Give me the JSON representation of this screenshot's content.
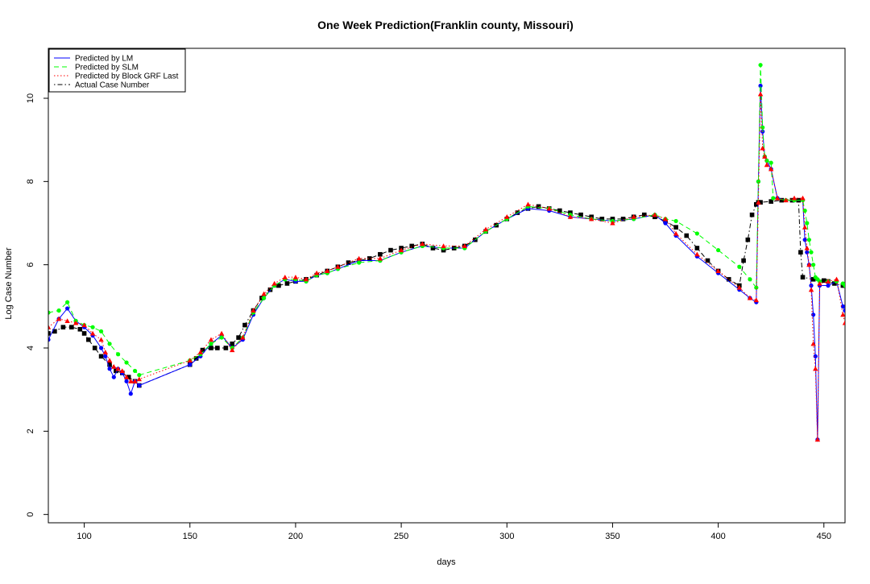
{
  "chart_data": {
    "type": "line",
    "title": "One Week Prediction(Franklin county, Missouri)",
    "xlabel": "days",
    "ylabel": "Log Case Number",
    "xlim": [
      83,
      460
    ],
    "ylim": [
      -0.2,
      11.2
    ],
    "xticks": [
      100,
      150,
      200,
      250,
      300,
      350,
      400,
      450
    ],
    "yticks": [
      0,
      2,
      4,
      6,
      8,
      10
    ],
    "legend_position": "top-left",
    "grid": false,
    "series": [
      {
        "name": "Predicted by LM",
        "color": "#0000ff",
        "line_style": "solid",
        "marker": "circle",
        "x": [
          83,
          88,
          92,
          96,
          100,
          104,
          108,
          110,
          112,
          114,
          116,
          118,
          120,
          122,
          124,
          126,
          150,
          155,
          160,
          165,
          170,
          175,
          180,
          185,
          190,
          195,
          200,
          205,
          210,
          215,
          220,
          230,
          240,
          250,
          260,
          270,
          280,
          290,
          300,
          310,
          320,
          330,
          340,
          350,
          360,
          370,
          375,
          380,
          390,
          400,
          410,
          415,
          418,
          419,
          420,
          421,
          422,
          423,
          425,
          428,
          432,
          436,
          440,
          441,
          442,
          443,
          444,
          445,
          446,
          447,
          448,
          452,
          456,
          459,
          460
        ],
        "y": [
          4.2,
          4.7,
          4.95,
          4.65,
          4.5,
          4.3,
          4.0,
          3.8,
          3.5,
          3.3,
          3.5,
          3.4,
          3.2,
          2.9,
          3.2,
          3.1,
          3.6,
          3.8,
          4.1,
          4.3,
          4.0,
          4.2,
          4.8,
          5.2,
          5.5,
          5.65,
          5.6,
          5.6,
          5.75,
          5.8,
          5.9,
          6.1,
          6.1,
          6.3,
          6.45,
          6.4,
          6.4,
          6.8,
          7.1,
          7.35,
          7.3,
          7.15,
          7.1,
          7.05,
          7.1,
          7.2,
          7.0,
          6.7,
          6.2,
          5.8,
          5.4,
          5.2,
          5.1,
          8.0,
          10.3,
          9.2,
          8.6,
          8.5,
          8.3,
          7.6,
          7.55,
          7.55,
          7.55,
          6.6,
          6.3,
          6.0,
          5.5,
          4.8,
          3.8,
          1.8,
          5.5,
          5.5,
          5.6,
          5.0,
          4.9
        ]
      },
      {
        "name": "Predicted by SLM",
        "color": "#00ff00",
        "line_style": "dashed",
        "marker": "circle",
        "x": [
          83,
          88,
          92,
          96,
          100,
          104,
          108,
          112,
          116,
          120,
          124,
          126,
          150,
          155,
          160,
          165,
          170,
          175,
          180,
          185,
          190,
          195,
          200,
          205,
          210,
          215,
          220,
          230,
          240,
          250,
          260,
          270,
          280,
          290,
          300,
          310,
          320,
          330,
          340,
          350,
          360,
          370,
          375,
          380,
          390,
          400,
          410,
          415,
          418,
          419,
          420,
          421,
          422,
          423,
          425,
          426,
          432,
          436,
          440,
          441,
          442,
          443,
          444,
          445,
          446,
          447,
          448,
          452,
          456,
          459,
          460
        ],
        "y": [
          4.85,
          4.9,
          5.1,
          4.65,
          4.55,
          4.5,
          4.4,
          4.1,
          3.85,
          3.65,
          3.45,
          3.35,
          3.7,
          3.85,
          4.1,
          4.25,
          4.0,
          4.25,
          4.85,
          5.2,
          5.5,
          5.65,
          5.65,
          5.6,
          5.75,
          5.8,
          5.9,
          6.05,
          6.1,
          6.3,
          6.45,
          6.4,
          6.4,
          6.8,
          7.1,
          7.4,
          7.35,
          7.2,
          7.1,
          7.05,
          7.1,
          7.2,
          7.1,
          7.05,
          6.75,
          6.35,
          5.95,
          5.65,
          5.45,
          8.0,
          10.8,
          9.3,
          8.6,
          8.5,
          8.45,
          7.6,
          7.55,
          7.55,
          7.55,
          7.3,
          7.0,
          6.6,
          6.3,
          6.0,
          5.7,
          5.65,
          5.6,
          5.6,
          5.6,
          5.55,
          5.5
        ]
      },
      {
        "name": "Predicted by Block GRF Last",
        "color": "#ff0000",
        "line_style": "dotted",
        "marker": "triangle",
        "x": [
          83,
          88,
          92,
          96,
          100,
          104,
          108,
          110,
          112,
          114,
          116,
          118,
          120,
          122,
          124,
          126,
          150,
          155,
          160,
          165,
          170,
          175,
          180,
          185,
          190,
          195,
          200,
          205,
          210,
          215,
          220,
          230,
          240,
          250,
          260,
          270,
          280,
          290,
          300,
          310,
          320,
          330,
          340,
          350,
          360,
          370,
          375,
          380,
          390,
          400,
          410,
          415,
          418,
          419,
          420,
          421,
          422,
          423,
          425,
          428,
          432,
          436,
          440,
          441,
          442,
          443,
          444,
          445,
          446,
          447,
          448,
          452,
          456,
          459,
          460
        ],
        "y": [
          4.5,
          4.7,
          4.65,
          4.6,
          4.55,
          4.35,
          4.2,
          3.9,
          3.7,
          3.55,
          3.5,
          3.45,
          3.3,
          3.2,
          3.2,
          3.25,
          3.7,
          3.9,
          4.2,
          4.35,
          3.95,
          4.25,
          4.9,
          5.3,
          5.55,
          5.7,
          5.7,
          5.65,
          5.8,
          5.85,
          5.95,
          6.15,
          6.15,
          6.35,
          6.5,
          6.45,
          6.45,
          6.85,
          7.15,
          7.45,
          7.35,
          7.15,
          7.1,
          7.0,
          7.15,
          7.2,
          7.1,
          6.75,
          6.25,
          5.85,
          5.45,
          5.2,
          5.15,
          7.5,
          10.1,
          8.8,
          8.6,
          8.4,
          8.3,
          7.6,
          7.55,
          7.6,
          7.6,
          6.9,
          6.4,
          6.0,
          5.4,
          4.1,
          3.5,
          1.8,
          5.55,
          5.6,
          5.65,
          4.8,
          4.6
        ]
      },
      {
        "name": "Actual Case Number",
        "color": "#000000",
        "line_style": "dotdash",
        "marker": "square",
        "x": [
          83,
          86,
          90,
          94,
          98,
          100,
          102,
          105,
          108,
          112,
          115,
          118,
          121,
          124,
          126,
          150,
          153,
          156,
          160,
          163,
          167,
          170,
          173,
          176,
          180,
          184,
          188,
          192,
          196,
          200,
          205,
          210,
          215,
          220,
          225,
          230,
          235,
          240,
          245,
          250,
          255,
          260,
          265,
          270,
          275,
          280,
          285,
          290,
          295,
          300,
          305,
          310,
          315,
          320,
          325,
          330,
          335,
          340,
          345,
          350,
          355,
          360,
          365,
          370,
          375,
          380,
          385,
          390,
          395,
          400,
          405,
          410,
          412,
          414,
          416,
          418,
          419,
          420,
          425,
          430,
          435,
          438,
          439,
          440,
          445,
          450,
          452,
          455,
          459,
          460
        ],
        "y": [
          4.35,
          4.4,
          4.5,
          4.5,
          4.45,
          4.35,
          4.2,
          4.0,
          3.8,
          3.6,
          3.45,
          3.4,
          3.3,
          3.2,
          3.1,
          3.6,
          3.75,
          3.95,
          4.0,
          4.0,
          4.0,
          4.1,
          4.25,
          4.55,
          4.9,
          5.2,
          5.4,
          5.5,
          5.55,
          5.6,
          5.65,
          5.75,
          5.85,
          5.95,
          6.05,
          6.1,
          6.15,
          6.25,
          6.35,
          6.4,
          6.45,
          6.5,
          6.4,
          6.35,
          6.4,
          6.45,
          6.6,
          6.8,
          6.95,
          7.1,
          7.25,
          7.35,
          7.4,
          7.35,
          7.3,
          7.25,
          7.2,
          7.15,
          7.1,
          7.1,
          7.1,
          7.15,
          7.2,
          7.15,
          7.05,
          6.9,
          6.7,
          6.4,
          6.1,
          5.85,
          5.65,
          5.5,
          6.1,
          6.6,
          7.2,
          7.45,
          7.5,
          7.5,
          7.52,
          7.55,
          7.55,
          7.55,
          6.3,
          5.7,
          5.65,
          5.62,
          5.6,
          5.55,
          5.5,
          5.5
        ]
      }
    ]
  }
}
